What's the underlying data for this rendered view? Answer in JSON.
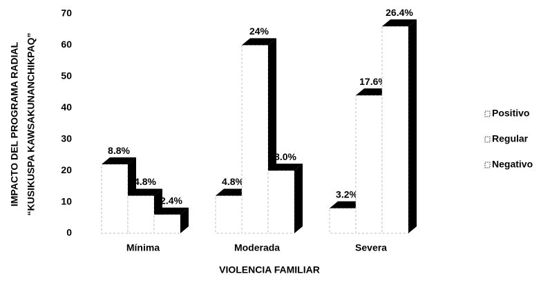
{
  "chart_data": {
    "type": "bar3d",
    "ylabel": [
      "IMPACTO DEL PROGRAMA RADIAL",
      "“KUSIKUSPA KAWSAKUNANCHIKPAQ”"
    ],
    "xlabel": "VIOLENCIA FAMILIAR",
    "categories": [
      "Mínima",
      "Moderada",
      "Severa"
    ],
    "series": [
      {
        "name": "Positivo",
        "color": "#000000",
        "values": [
          22,
          12,
          8
        ],
        "value_labels": [
          "8.8%",
          "4.8%",
          "3.2%"
        ]
      },
      {
        "name": "Regular",
        "color": "#000000",
        "values": [
          12,
          60,
          44
        ],
        "value_labels": [
          "4.8%",
          "24%",
          "17.6%"
        ]
      },
      {
        "name": "Negativo",
        "color": "#000000",
        "values": [
          6,
          20,
          66
        ],
        "value_labels": [
          "2.4%",
          "8.0%",
          "26.4%"
        ]
      }
    ],
    "ylim": [
      0,
      70
    ],
    "yticks": [
      0,
      10,
      20,
      30,
      40,
      50,
      60,
      70
    ],
    "grid": false,
    "legend": "right"
  }
}
